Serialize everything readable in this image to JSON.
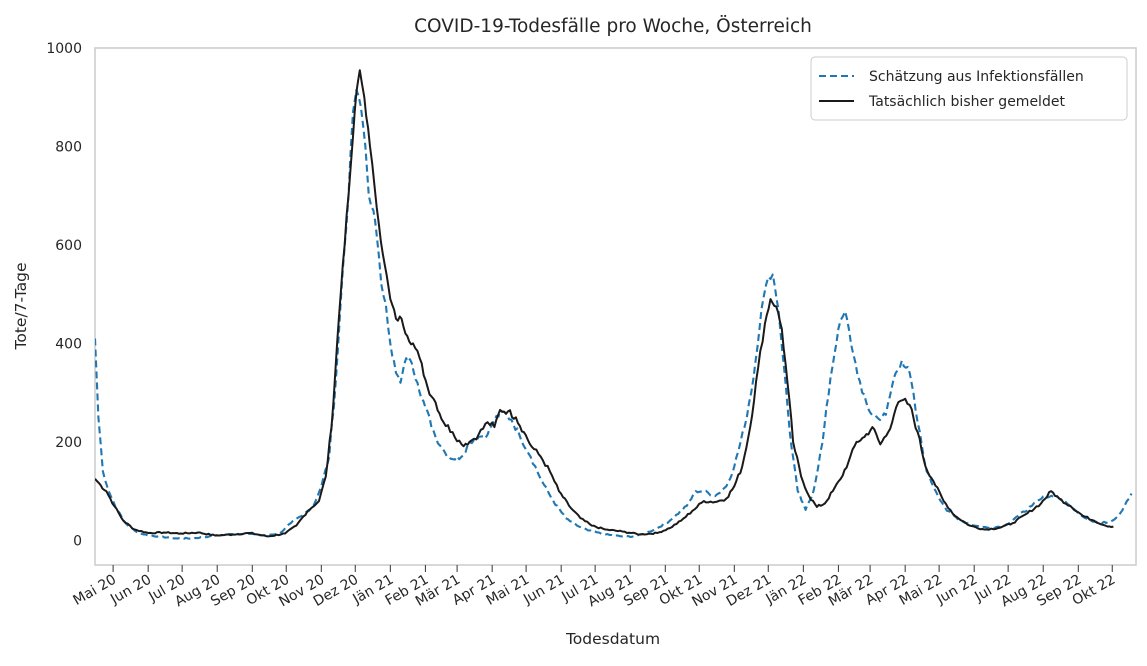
{
  "chart_data": {
    "type": "line",
    "title": "COVID-19-Todesfälle pro Woche, Österreich",
    "xlabel": "Todesdatum",
    "ylabel": "Tote/7-Tage",
    "ylim": [
      -50,
      1000
    ],
    "yticks": [
      0,
      200,
      400,
      600,
      800,
      1000
    ],
    "xlim": [
      "2020-04-15",
      "2022-10-22"
    ],
    "grid": true,
    "legend_position": "top-right",
    "colors": {
      "estimate": "#1f77b4",
      "actual": "#1a1a1a",
      "grid": "#cccccc"
    },
    "month_ticks": [
      {
        "date": "2020-05-01",
        "label": "Mai 20"
      },
      {
        "date": "2020-06-01",
        "label": "Jun 20"
      },
      {
        "date": "2020-07-01",
        "label": "Jul 20"
      },
      {
        "date": "2020-08-01",
        "label": "Aug 20"
      },
      {
        "date": "2020-09-01",
        "label": "Sep 20"
      },
      {
        "date": "2020-10-01",
        "label": "Okt 20"
      },
      {
        "date": "2020-11-01",
        "label": "Nov 20"
      },
      {
        "date": "2020-12-01",
        "label": "Dez 20"
      },
      {
        "date": "2021-01-01",
        "label": "Jän 21"
      },
      {
        "date": "2021-02-01",
        "label": "Feb 21"
      },
      {
        "date": "2021-03-01",
        "label": "Mär 21"
      },
      {
        "date": "2021-04-01",
        "label": "Apr 21"
      },
      {
        "date": "2021-05-01",
        "label": "Mai 21"
      },
      {
        "date": "2021-06-01",
        "label": "Jun 21"
      },
      {
        "date": "2021-07-01",
        "label": "Jul 21"
      },
      {
        "date": "2021-08-01",
        "label": "Aug 21"
      },
      {
        "date": "2021-09-01",
        "label": "Sep 21"
      },
      {
        "date": "2021-10-01",
        "label": "Okt 21"
      },
      {
        "date": "2021-11-01",
        "label": "Nov 21"
      },
      {
        "date": "2021-12-01",
        "label": "Dez 21"
      },
      {
        "date": "2022-01-01",
        "label": "Jän 22"
      },
      {
        "date": "2022-02-01",
        "label": "Feb 22"
      },
      {
        "date": "2022-03-01",
        "label": "Mär 22"
      },
      {
        "date": "2022-04-01",
        "label": "Apr 22"
      },
      {
        "date": "2022-05-01",
        "label": "Mai 22"
      },
      {
        "date": "2022-06-01",
        "label": "Jun 22"
      },
      {
        "date": "2022-07-01",
        "label": "Jul 22"
      },
      {
        "date": "2022-08-01",
        "label": "Aug 22"
      },
      {
        "date": "2022-09-01",
        "label": "Sep 22"
      },
      {
        "date": "2022-10-01",
        "label": "Okt 22"
      }
    ],
    "series": [
      {
        "name": "Schätzung aus Infektionsfällen",
        "style": "dashed",
        "color": "#1f77b4",
        "points": [
          [
            "2020-04-15",
            410
          ],
          [
            "2020-04-18",
            250
          ],
          [
            "2020-04-22",
            140
          ],
          [
            "2020-04-28",
            95
          ],
          [
            "2020-05-05",
            60
          ],
          [
            "2020-05-12",
            35
          ],
          [
            "2020-05-20",
            20
          ],
          [
            "2020-05-28",
            12
          ],
          [
            "2020-06-10",
            8
          ],
          [
            "2020-06-25",
            4
          ],
          [
            "2020-07-10",
            4
          ],
          [
            "2020-07-25",
            8
          ],
          [
            "2020-08-10",
            12
          ],
          [
            "2020-08-25",
            14
          ],
          [
            "2020-09-10",
            10
          ],
          [
            "2020-09-25",
            14
          ],
          [
            "2020-10-05",
            35
          ],
          [
            "2020-10-15",
            50
          ],
          [
            "2020-10-25",
            70
          ],
          [
            "2020-11-01",
            110
          ],
          [
            "2020-11-08",
            170
          ],
          [
            "2020-11-14",
            330
          ],
          [
            "2020-11-20",
            550
          ],
          [
            "2020-11-25",
            700
          ],
          [
            "2020-11-29",
            870
          ],
          [
            "2020-12-02",
            915
          ],
          [
            "2020-12-06",
            880
          ],
          [
            "2020-12-10",
            800
          ],
          [
            "2020-12-13",
            700
          ],
          [
            "2020-12-17",
            670
          ],
          [
            "2020-12-20",
            620
          ],
          [
            "2020-12-24",
            520
          ],
          [
            "2020-12-28",
            480
          ],
          [
            "2021-01-01",
            400
          ],
          [
            "2021-01-06",
            340
          ],
          [
            "2021-01-10",
            320
          ],
          [
            "2021-01-15",
            370
          ],
          [
            "2021-01-20",
            360
          ],
          [
            "2021-01-25",
            320
          ],
          [
            "2021-02-01",
            270
          ],
          [
            "2021-02-10",
            210
          ],
          [
            "2021-02-18",
            180
          ],
          [
            "2021-02-25",
            165
          ],
          [
            "2021-03-05",
            170
          ],
          [
            "2021-03-12",
            200
          ],
          [
            "2021-03-20",
            210
          ],
          [
            "2021-03-28",
            215
          ],
          [
            "2021-04-03",
            245
          ],
          [
            "2021-04-10",
            262
          ],
          [
            "2021-04-18",
            245
          ],
          [
            "2021-04-25",
            215
          ],
          [
            "2021-05-05",
            170
          ],
          [
            "2021-05-15",
            120
          ],
          [
            "2021-05-25",
            80
          ],
          [
            "2021-06-05",
            45
          ],
          [
            "2021-06-15",
            30
          ],
          [
            "2021-06-25",
            20
          ],
          [
            "2021-07-10",
            12
          ],
          [
            "2021-07-25",
            8
          ],
          [
            "2021-08-05",
            8
          ],
          [
            "2021-08-15",
            15
          ],
          [
            "2021-08-25",
            25
          ],
          [
            "2021-09-05",
            40
          ],
          [
            "2021-09-20",
            70
          ],
          [
            "2021-09-28",
            100
          ],
          [
            "2021-10-05",
            100
          ],
          [
            "2021-10-15",
            90
          ],
          [
            "2021-10-25",
            110
          ],
          [
            "2021-11-01",
            150
          ],
          [
            "2021-11-10",
            230
          ],
          [
            "2021-11-18",
            330
          ],
          [
            "2021-11-25",
            470
          ],
          [
            "2021-12-01",
            535
          ],
          [
            "2021-12-05",
            540
          ],
          [
            "2021-12-10",
            470
          ],
          [
            "2021-12-15",
            350
          ],
          [
            "2021-12-20",
            220
          ],
          [
            "2021-12-27",
            100
          ],
          [
            "2022-01-03",
            62
          ],
          [
            "2022-01-10",
            100
          ],
          [
            "2022-01-18",
            200
          ],
          [
            "2022-01-25",
            330
          ],
          [
            "2022-02-01",
            430
          ],
          [
            "2022-02-07",
            465
          ],
          [
            "2022-02-14",
            380
          ],
          [
            "2022-02-22",
            300
          ],
          [
            "2022-03-01",
            260
          ],
          [
            "2022-03-08",
            248
          ],
          [
            "2022-03-15",
            255
          ],
          [
            "2022-03-22",
            330
          ],
          [
            "2022-03-29",
            365
          ],
          [
            "2022-04-05",
            340
          ],
          [
            "2022-04-12",
            240
          ],
          [
            "2022-04-20",
            140
          ],
          [
            "2022-04-28",
            100
          ],
          [
            "2022-05-08",
            60
          ],
          [
            "2022-05-20",
            40
          ],
          [
            "2022-06-01",
            30
          ],
          [
            "2022-06-15",
            25
          ],
          [
            "2022-06-28",
            30
          ],
          [
            "2022-07-10",
            50
          ],
          [
            "2022-07-22",
            70
          ],
          [
            "2022-08-03",
            90
          ],
          [
            "2022-08-12",
            90
          ],
          [
            "2022-08-22",
            75
          ],
          [
            "2022-09-01",
            55
          ],
          [
            "2022-09-12",
            40
          ],
          [
            "2022-09-22",
            35
          ],
          [
            "2022-10-01",
            40
          ],
          [
            "2022-10-08",
            55
          ],
          [
            "2022-10-14",
            80
          ],
          [
            "2022-10-18",
            95
          ]
        ]
      },
      {
        "name": "Tatsächlich bisher gemeldet",
        "style": "solid",
        "color": "#1a1a1a",
        "points": [
          [
            "2020-04-15",
            125
          ],
          [
            "2020-04-20",
            112
          ],
          [
            "2020-04-25",
            100
          ],
          [
            "2020-05-02",
            70
          ],
          [
            "2020-05-10",
            40
          ],
          [
            "2020-05-20",
            22
          ],
          [
            "2020-06-01",
            15
          ],
          [
            "2020-06-15",
            16
          ],
          [
            "2020-06-30",
            14
          ],
          [
            "2020-07-15",
            16
          ],
          [
            "2020-07-30",
            10
          ],
          [
            "2020-08-15",
            12
          ],
          [
            "2020-08-30",
            15
          ],
          [
            "2020-09-15",
            8
          ],
          [
            "2020-09-30",
            14
          ],
          [
            "2020-10-10",
            30
          ],
          [
            "2020-10-20",
            60
          ],
          [
            "2020-10-30",
            80
          ],
          [
            "2020-11-05",
            130
          ],
          [
            "2020-11-10",
            230
          ],
          [
            "2020-11-15",
            400
          ],
          [
            "2020-11-20",
            560
          ],
          [
            "2020-11-25",
            700
          ],
          [
            "2020-11-29",
            820
          ],
          [
            "2020-12-02",
            910
          ],
          [
            "2020-12-05",
            955
          ],
          [
            "2020-12-09",
            900
          ],
          [
            "2020-12-14",
            800
          ],
          [
            "2020-12-18",
            720
          ],
          [
            "2020-12-22",
            640
          ],
          [
            "2020-12-27",
            560
          ],
          [
            "2021-01-01",
            490
          ],
          [
            "2021-01-06",
            450
          ],
          [
            "2021-01-11",
            450
          ],
          [
            "2021-01-16",
            415
          ],
          [
            "2021-01-21",
            400
          ],
          [
            "2021-01-27",
            370
          ],
          [
            "2021-02-03",
            310
          ],
          [
            "2021-02-10",
            280
          ],
          [
            "2021-02-17",
            240
          ],
          [
            "2021-02-25",
            220
          ],
          [
            "2021-03-05",
            195
          ],
          [
            "2021-03-12",
            200
          ],
          [
            "2021-03-20",
            215
          ],
          [
            "2021-03-28",
            240
          ],
          [
            "2021-04-03",
            230
          ],
          [
            "2021-04-08",
            265
          ],
          [
            "2021-04-15",
            262
          ],
          [
            "2021-04-22",
            250
          ],
          [
            "2021-04-29",
            220
          ],
          [
            "2021-05-06",
            190
          ],
          [
            "2021-05-14",
            170
          ],
          [
            "2021-05-22",
            140
          ],
          [
            "2021-05-30",
            100
          ],
          [
            "2021-06-08",
            70
          ],
          [
            "2021-06-18",
            45
          ],
          [
            "2021-06-28",
            30
          ],
          [
            "2021-07-10",
            22
          ],
          [
            "2021-07-25",
            18
          ],
          [
            "2021-08-10",
            12
          ],
          [
            "2021-08-25",
            15
          ],
          [
            "2021-09-05",
            25
          ],
          [
            "2021-09-15",
            40
          ],
          [
            "2021-09-25",
            60
          ],
          [
            "2021-10-05",
            80
          ],
          [
            "2021-10-15",
            78
          ],
          [
            "2021-10-25",
            85
          ],
          [
            "2021-11-01",
            110
          ],
          [
            "2021-11-08",
            150
          ],
          [
            "2021-11-15",
            230
          ],
          [
            "2021-11-22",
            350
          ],
          [
            "2021-11-28",
            440
          ],
          [
            "2021-12-03",
            490
          ],
          [
            "2021-12-08",
            475
          ],
          [
            "2021-12-13",
            430
          ],
          [
            "2021-12-18",
            320
          ],
          [
            "2021-12-23",
            200
          ],
          [
            "2021-12-30",
            130
          ],
          [
            "2022-01-06",
            90
          ],
          [
            "2022-01-13",
            68
          ],
          [
            "2022-01-20",
            75
          ],
          [
            "2022-01-27",
            100
          ],
          [
            "2022-02-03",
            125
          ],
          [
            "2022-02-10",
            160
          ],
          [
            "2022-02-17",
            200
          ],
          [
            "2022-02-24",
            210
          ],
          [
            "2022-03-03",
            230
          ],
          [
            "2022-03-10",
            195
          ],
          [
            "2022-03-17",
            220
          ],
          [
            "2022-03-24",
            270
          ],
          [
            "2022-03-30",
            285
          ],
          [
            "2022-04-05",
            275
          ],
          [
            "2022-04-12",
            220
          ],
          [
            "2022-04-19",
            150
          ],
          [
            "2022-04-26",
            120
          ],
          [
            "2022-05-05",
            80
          ],
          [
            "2022-05-15",
            50
          ],
          [
            "2022-05-28",
            30
          ],
          [
            "2022-06-10",
            22
          ],
          [
            "2022-06-22",
            25
          ],
          [
            "2022-07-05",
            35
          ],
          [
            "2022-07-18",
            55
          ],
          [
            "2022-07-30",
            75
          ],
          [
            "2022-08-08",
            100
          ],
          [
            "2022-08-15",
            85
          ],
          [
            "2022-08-25",
            70
          ],
          [
            "2022-09-05",
            50
          ],
          [
            "2022-09-15",
            40
          ],
          [
            "2022-09-25",
            30
          ],
          [
            "2022-10-02",
            28
          ]
        ]
      }
    ]
  }
}
